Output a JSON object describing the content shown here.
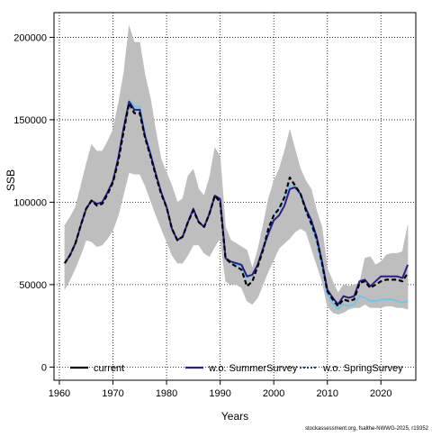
{
  "credit": "stockassessment.org, fsalthe-NWWG-2025, r19352",
  "colors": {
    "band": "#bebebe",
    "current": "#000000",
    "summer": "#2a1e8c",
    "spring": "#67c8f0"
  },
  "chart_data": {
    "type": "line",
    "title": "",
    "xlabel": "Years",
    "ylabel": "SSB",
    "xlim": [
      1959,
      2026.5
    ],
    "ylim": [
      -8000,
      215000
    ],
    "xticks": [
      1960,
      1970,
      1980,
      1990,
      2000,
      2010,
      2020
    ],
    "yticks": [
      0,
      50000,
      100000,
      150000,
      200000
    ],
    "grid": true,
    "legend_position": "bottom",
    "legend": [
      "current",
      "w.o. SummerSurvey",
      "w.o. SpringSurvey"
    ],
    "x": [
      1961,
      1962,
      1963,
      1964,
      1965,
      1966,
      1967,
      1968,
      1969,
      1970,
      1971,
      1972,
      1973,
      1974,
      1975,
      1976,
      1977,
      1978,
      1979,
      1980,
      1981,
      1982,
      1983,
      1984,
      1985,
      1986,
      1987,
      1988,
      1989,
      1990,
      1991,
      1992,
      1993,
      1994,
      1995,
      1996,
      1997,
      1998,
      1999,
      2000,
      2001,
      2002,
      2003,
      2004,
      2005,
      2006,
      2007,
      2008,
      2009,
      2010,
      2011,
      2012,
      2013,
      2014,
      2015,
      2016,
      2017,
      2018,
      2019,
      2020,
      2021,
      2022,
      2023,
      2024,
      2025
    ],
    "confidence_band": {
      "lower": [
        47000,
        53000,
        60000,
        68000,
        77000,
        76000,
        73000,
        74000,
        78000,
        83000,
        92000,
        105000,
        118000,
        117000,
        117000,
        110000,
        101000,
        92000,
        84000,
        76000,
        68000,
        63000,
        63000,
        68000,
        74000,
        74000,
        69000,
        67000,
        73000,
        78000,
        52000,
        50000,
        50000,
        48000,
        40000,
        38000,
        42000,
        50000,
        58000,
        65000,
        72000,
        75000,
        78000,
        82000,
        84000,
        82000,
        72000,
        62000,
        52000,
        37000,
        33000,
        32000,
        33000,
        35000,
        36000,
        36000,
        38000,
        36000,
        36000,
        36000,
        37000,
        37000,
        36000,
        36000,
        35000
      ],
      "upper": [
        86000,
        91000,
        97000,
        110000,
        123000,
        135000,
        131000,
        131000,
        137000,
        144000,
        160000,
        178000,
        207000,
        197000,
        197000,
        177000,
        163000,
        143000,
        126000,
        118000,
        110000,
        100000,
        102000,
        116000,
        120000,
        108000,
        104000,
        115000,
        133000,
        128000,
        85000,
        77000,
        75000,
        73000,
        71000,
        60000,
        71000,
        86000,
        102000,
        113000,
        120000,
        131000,
        144000,
        132000,
        120000,
        113000,
        108000,
        95000,
        85000,
        60000,
        52000,
        45000,
        50000,
        49000,
        50000,
        51000,
        66000,
        67000,
        62000,
        64000,
        68000,
        69000,
        69000,
        70000,
        86000
      ]
    },
    "series": [
      {
        "name": "current",
        "style": "solid",
        "values": [
          63000,
          68000,
          75000,
          86000,
          96000,
          101000,
          98000,
          99000,
          105000,
          112000,
          125000,
          143000,
          160000,
          154000,
          154000,
          139000,
          128000,
          116000,
          105000,
          97000,
          84000,
          77000,
          79000,
          88000,
          95000,
          88000,
          85000,
          93000,
          104000,
          100000,
          66000,
          63000,
          61000,
          59000,
          49000,
          52000,
          61000,
          71000,
          84000,
          92000,
          96000,
          103000,
          115000,
          110000,
          105000,
          95000,
          87000,
          78000,
          63000,
          46000,
          41000,
          37000,
          41000,
          40000,
          41000,
          51000,
          52000,
          48000,
          50000,
          52000,
          53000,
          53000,
          53000,
          52000,
          57000
        ]
      },
      {
        "name": "w.o. SummerSurvey",
        "style": "solid",
        "values": [
          63000,
          68000,
          75000,
          86000,
          96000,
          101000,
          99000,
          100000,
          106000,
          113000,
          127000,
          145000,
          161000,
          156000,
          156000,
          140000,
          129000,
          117000,
          106000,
          97000,
          84000,
          77000,
          79000,
          88000,
          96000,
          88000,
          85000,
          93000,
          104000,
          102000,
          66000,
          64000,
          63000,
          62000,
          55000,
          56000,
          62000,
          72000,
          81000,
          89000,
          92000,
          98000,
          108000,
          109000,
          105000,
          96000,
          89000,
          79000,
          64000,
          47000,
          42000,
          38000,
          43000,
          42000,
          43000,
          52000,
          53000,
          49000,
          52000,
          55000,
          55000,
          55000,
          55000,
          54000,
          62000
        ]
      },
      {
        "name": "w.o. SpringSurvey",
        "style": "dotted",
        "values": [
          63000,
          68000,
          75000,
          86000,
          96000,
          101000,
          99000,
          100000,
          106000,
          113000,
          127000,
          145000,
          162000,
          158000,
          158000,
          141000,
          130000,
          117000,
          106000,
          97000,
          84000,
          77000,
          79000,
          88000,
          95000,
          88000,
          85000,
          93000,
          104000,
          101000,
          66000,
          64000,
          62000,
          61000,
          54000,
          56000,
          62000,
          72000,
          83000,
          92000,
          96000,
          103000,
          110000,
          109000,
          104000,
          95000,
          86000,
          76000,
          61000,
          44000,
          39000,
          35000,
          38000,
          37000,
          38000,
          43000,
          42000,
          40000,
          40000,
          41000,
          41000,
          41000,
          40000,
          39000,
          40000
        ]
      }
    ]
  }
}
